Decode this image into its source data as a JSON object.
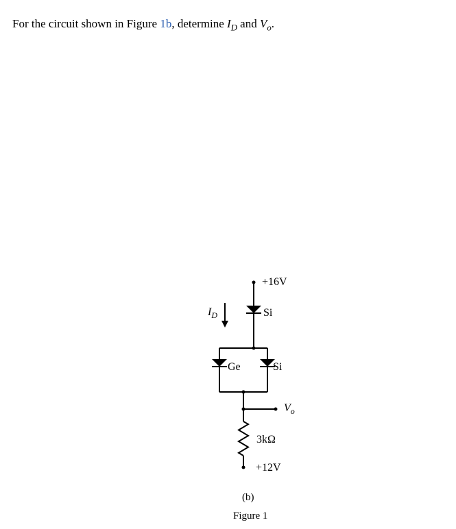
{
  "prompt": {
    "pre": "For the circuit shown in Figure ",
    "figref": "1b",
    "mid": ", determine ",
    "id_sym": "I",
    "id_sub": "D",
    "and": " and ",
    "vo_sym": "V",
    "vo_sub": "o",
    "end": "."
  },
  "circuit": {
    "type": "schematic",
    "node_top": "+16V",
    "diode_top": "Si",
    "id_label": "I",
    "id_sub": "D",
    "diode_left": "Ge",
    "diode_right": "Si",
    "vo_label": "V",
    "vo_sub": "o",
    "resistor": "3kΩ",
    "node_bot": "+12V",
    "wire_color": "#000000",
    "fill_color": "#000000",
    "stroke_w": 2.0,
    "diode_size": 11,
    "dot_r": 2.5
  },
  "caption": {
    "sub": "(b)",
    "fig": "Figure 1"
  }
}
